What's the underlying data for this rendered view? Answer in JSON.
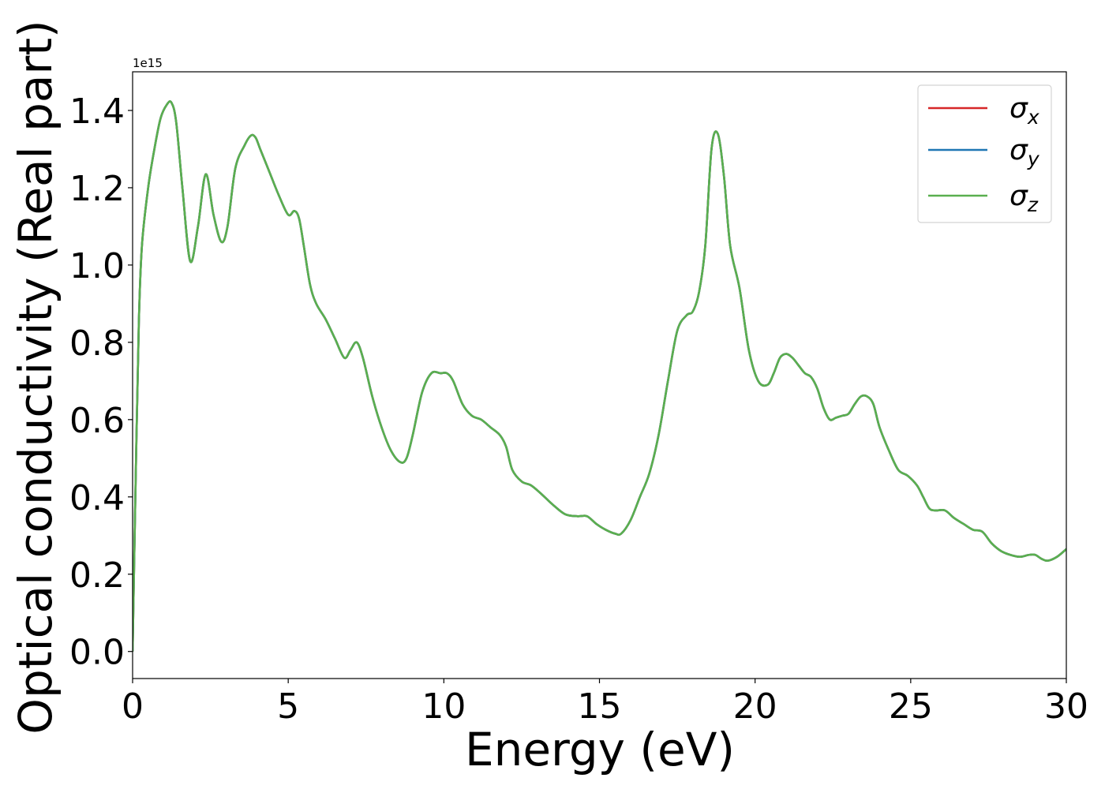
{
  "chart_data": {
    "type": "line",
    "xlabel": "Energy (eV)",
    "ylabel": "Optical conductivity (Real part)",
    "offset_label": "1e15",
    "xlim": [
      0,
      30
    ],
    "ylim": [
      -0.07,
      1.5
    ],
    "y_scale_factor": 1000000000000000.0,
    "xticks": [
      0,
      5,
      10,
      15,
      20,
      25,
      30
    ],
    "xtick_labels": [
      "0",
      "5",
      "10",
      "15",
      "20",
      "25",
      "30"
    ],
    "yticks": [
      0.0,
      0.2,
      0.4,
      0.6,
      0.8,
      1.0,
      1.2,
      1.4
    ],
    "ytick_labels": [
      "0.0",
      "0.2",
      "0.4",
      "0.6",
      "0.8",
      "1.0",
      "1.2",
      "1.4"
    ],
    "grid": false,
    "legend_position": "top-right",
    "series": [
      {
        "name": "σx",
        "base": "σ",
        "sub": "x",
        "color": "#d62728"
      },
      {
        "name": "σy",
        "base": "σ",
        "sub": "y",
        "color": "#1f77b4"
      },
      {
        "name": "σz",
        "base": "σ",
        "sub": "z",
        "color": "#5aaf4f"
      }
    ],
    "x": [
      0,
      0.1,
      0.2,
      0.3,
      0.5,
      0.7,
      0.9,
      1.1,
      1.25,
      1.4,
      1.6,
      1.85,
      2.1,
      2.35,
      2.6,
      2.85,
      3.05,
      3.3,
      3.6,
      3.8,
      3.95,
      4.1,
      4.4,
      4.7,
      5.0,
      5.2,
      5.35,
      5.5,
      5.7,
      5.9,
      6.2,
      6.5,
      6.8,
      7.0,
      7.2,
      7.4,
      7.7,
      8.0,
      8.3,
      8.6,
      8.8,
      9.0,
      9.3,
      9.6,
      9.9,
      10.1,
      10.3,
      10.6,
      10.9,
      11.2,
      11.5,
      11.8,
      12.0,
      12.2,
      12.5,
      12.8,
      13.1,
      13.5,
      13.9,
      14.3,
      14.6,
      14.9,
      15.2,
      15.5,
      15.7,
      16.0,
      16.3,
      16.6,
      16.9,
      17.2,
      17.5,
      17.8,
      18.0,
      18.2,
      18.4,
      18.6,
      18.8,
      19.0,
      19.2,
      19.5,
      19.8,
      20.1,
      20.4,
      20.6,
      20.8,
      21.0,
      21.2,
      21.4,
      21.6,
      21.8,
      22.0,
      22.2,
      22.4,
      22.6,
      22.8,
      23.0,
      23.2,
      23.4,
      23.6,
      23.8,
      24.0,
      24.3,
      24.6,
      24.9,
      25.2,
      25.4,
      25.6,
      25.8,
      26.1,
      26.4,
      26.7,
      27.0,
      27.3,
      27.6,
      27.9,
      28.2,
      28.5,
      28.8,
      29.0,
      29.2,
      29.4,
      29.7,
      30.0
    ],
    "y": [
      0.0,
      0.45,
      0.85,
      1.05,
      1.2,
      1.3,
      1.38,
      1.415,
      1.42,
      1.37,
      1.2,
      1.01,
      1.1,
      1.235,
      1.13,
      1.06,
      1.1,
      1.25,
      1.31,
      1.335,
      1.33,
      1.3,
      1.24,
      1.18,
      1.13,
      1.14,
      1.12,
      1.05,
      0.95,
      0.9,
      0.86,
      0.81,
      0.76,
      0.78,
      0.8,
      0.76,
      0.66,
      0.58,
      0.52,
      0.49,
      0.5,
      0.56,
      0.67,
      0.72,
      0.72,
      0.72,
      0.7,
      0.64,
      0.61,
      0.6,
      0.58,
      0.56,
      0.53,
      0.47,
      0.44,
      0.43,
      0.41,
      0.38,
      0.355,
      0.35,
      0.35,
      0.33,
      0.315,
      0.305,
      0.305,
      0.34,
      0.4,
      0.46,
      0.56,
      0.7,
      0.83,
      0.87,
      0.88,
      0.93,
      1.05,
      1.3,
      1.34,
      1.23,
      1.05,
      0.94,
      0.78,
      0.7,
      0.69,
      0.72,
      0.76,
      0.77,
      0.76,
      0.74,
      0.72,
      0.71,
      0.68,
      0.63,
      0.6,
      0.605,
      0.61,
      0.615,
      0.64,
      0.66,
      0.66,
      0.64,
      0.58,
      0.52,
      0.47,
      0.455,
      0.43,
      0.4,
      0.37,
      0.365,
      0.365,
      0.345,
      0.33,
      0.315,
      0.31,
      0.28,
      0.26,
      0.25,
      0.245,
      0.25,
      0.25,
      0.24,
      0.235,
      0.245,
      0.265
    ]
  }
}
